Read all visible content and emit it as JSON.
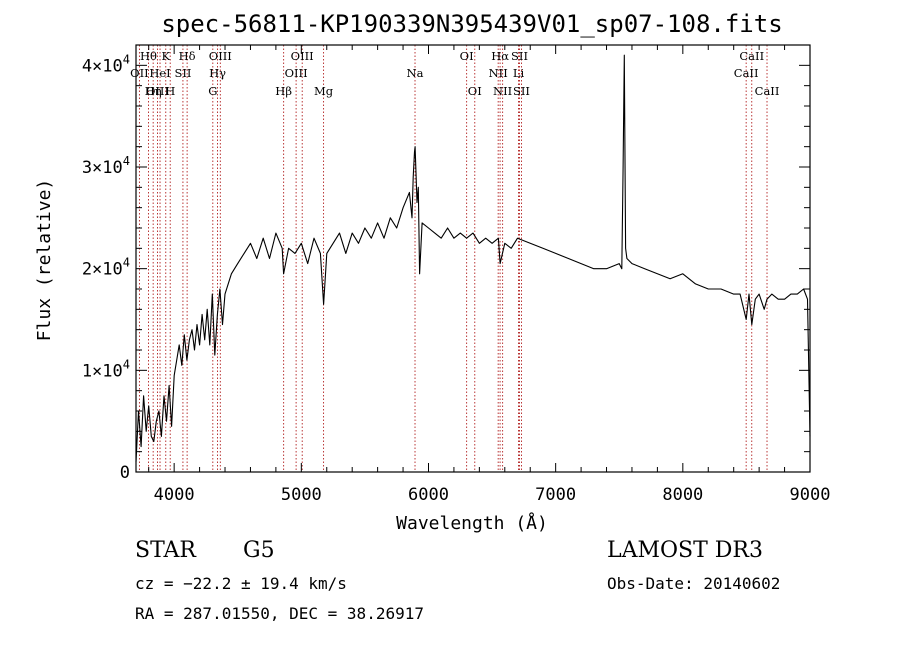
{
  "chart_data": {
    "type": "line",
    "title": "spec-56811-KP190339N395439V01_sp07-108.fits",
    "xlabel": "Wavelength (Å)",
    "ylabel": "Flux (relative)",
    "xlim": [
      3700,
      9000
    ],
    "ylim": [
      0,
      42000
    ],
    "x_ticks": [
      4000,
      5000,
      6000,
      7000,
      8000,
      9000
    ],
    "x_tick_labels": [
      "4000",
      "5000",
      "6000",
      "7000",
      "8000",
      "9000"
    ],
    "y_ticks": [
      0,
      10000,
      20000,
      30000,
      40000
    ],
    "y_tick_labels": [
      {
        "mant": "0",
        "exp": ""
      },
      {
        "mant": "1×10",
        "exp": "4"
      },
      {
        "mant": "2×10",
        "exp": "4"
      },
      {
        "mant": "3×10",
        "exp": "4"
      },
      {
        "mant": "4×10",
        "exp": "4"
      }
    ],
    "series": [
      {
        "name": "flux",
        "x": [
          3700,
          3720,
          3740,
          3760,
          3780,
          3800,
          3820,
          3840,
          3860,
          3880,
          3900,
          3920,
          3940,
          3960,
          3980,
          4000,
          4020,
          4040,
          4060,
          4080,
          4100,
          4120,
          4140,
          4160,
          4180,
          4200,
          4220,
          4240,
          4260,
          4280,
          4300,
          4320,
          4340,
          4360,
          4380,
          4400,
          4450,
          4500,
          4550,
          4600,
          4650,
          4700,
          4750,
          4800,
          4850,
          4861,
          4900,
          4950,
          5000,
          5050,
          5100,
          5150,
          5175,
          5200,
          5250,
          5300,
          5350,
          5400,
          5450,
          5500,
          5550,
          5600,
          5650,
          5700,
          5750,
          5800,
          5850,
          5870,
          5880,
          5890,
          5895,
          5900,
          5910,
          5920,
          5930,
          5950,
          6000,
          6050,
          6100,
          6150,
          6200,
          6250,
          6300,
          6350,
          6400,
          6450,
          6500,
          6550,
          6563,
          6600,
          6650,
          6700,
          6800,
          6900,
          7000,
          7100,
          7200,
          7300,
          7400,
          7500,
          7520,
          7530,
          7540,
          7550,
          7560,
          7600,
          7700,
          7800,
          7900,
          8000,
          8100,
          8200,
          8300,
          8400,
          8450,
          8498,
          8520,
          8542,
          8570,
          8600,
          8640,
          8662,
          8700,
          8750,
          8800,
          8850,
          8900,
          8950,
          8980,
          9000
        ],
        "y": [
          1000,
          6000,
          2500,
          7500,
          4000,
          6500,
          3500,
          3000,
          5000,
          6000,
          3500,
          7500,
          5000,
          8500,
          4500,
          9500,
          11000,
          12500,
          10500,
          13500,
          11000,
          13000,
          14000,
          12000,
          14500,
          12500,
          15500,
          13000,
          16000,
          12500,
          17500,
          11500,
          15500,
          18000,
          14500,
          17500,
          19500,
          20500,
          21500,
          22500,
          21000,
          23000,
          21000,
          23500,
          22000,
          19500,
          22000,
          21500,
          22500,
          20500,
          23000,
          21500,
          16500,
          21500,
          22500,
          23500,
          21500,
          23500,
          22500,
          24000,
          23000,
          24500,
          23000,
          25000,
          24000,
          26000,
          27500,
          25000,
          29000,
          31500,
          32000,
          30000,
          26500,
          28000,
          19500,
          24500,
          24000,
          23500,
          23000,
          24000,
          23000,
          23500,
          23000,
          23500,
          22500,
          23000,
          22500,
          23000,
          20500,
          22500,
          22000,
          23000,
          22500,
          22000,
          21500,
          21000,
          20500,
          20000,
          20000,
          20500,
          20000,
          30000,
          41000,
          22000,
          21000,
          20500,
          20000,
          19500,
          19000,
          19500,
          18500,
          18000,
          18000,
          17500,
          17500,
          15000,
          17500,
          14500,
          17000,
          17500,
          16000,
          17000,
          17500,
          17000,
          17000,
          17500,
          17500,
          18000,
          17000,
          3500
        ]
      }
    ],
    "spectral_lines": [
      {
        "name": "OII",
        "wave": 3727,
        "row": 1
      },
      {
        "name": "Hθ",
        "wave": 3798,
        "row": 0
      },
      {
        "name": "Hη",
        "wave": 3835,
        "row": 2
      },
      {
        "name": "OIII",
        "wave": 3869,
        "row": 2
      },
      {
        "name": "HeI",
        "wave": 3889,
        "row": 1
      },
      {
        "name": "K",
        "wave": 3934,
        "row": 0
      },
      {
        "name": "H",
        "wave": 3969,
        "row": 2
      },
      {
        "name": "SII",
        "wave": 4069,
        "row": 1
      },
      {
        "name": "Hδ",
        "wave": 4102,
        "row": 0
      },
      {
        "name": "G",
        "wave": 4304,
        "row": 2
      },
      {
        "name": "Hγ",
        "wave": 4341,
        "row": 1
      },
      {
        "name": "OIII",
        "wave": 4363,
        "row": 0
      },
      {
        "name": "Hβ",
        "wave": 4861,
        "row": 2
      },
      {
        "name": "OIII",
        "wave": 4959,
        "row": 1
      },
      {
        "name": "OIII",
        "wave": 5007,
        "row": 0
      },
      {
        "name": "Mg",
        "wave": 5175,
        "row": 2
      },
      {
        "name": "Na",
        "wave": 5894,
        "row": 1
      },
      {
        "name": "OI",
        "wave": 6300,
        "row": 0
      },
      {
        "name": "OI",
        "wave": 6364,
        "row": 2
      },
      {
        "name": "NII",
        "wave": 6548,
        "row": 1
      },
      {
        "name": "Hα",
        "wave": 6563,
        "row": 0
      },
      {
        "name": "NII",
        "wave": 6583,
        "row": 2
      },
      {
        "name": "Li",
        "wave": 6708,
        "row": 1
      },
      {
        "name": "SII",
        "wave": 6716,
        "row": 0
      },
      {
        "name": "SII",
        "wave": 6731,
        "row": 2
      },
      {
        "name": "CaII",
        "wave": 8498,
        "row": 1
      },
      {
        "name": "CaII",
        "wave": 8542,
        "row": 0
      },
      {
        "name": "CaII",
        "wave": 8662,
        "row": 2
      }
    ],
    "colors": {
      "spectrum": "#000000",
      "line_marker": "#b22222",
      "axes": "#000000"
    }
  },
  "info": {
    "obj_type": "STAR",
    "subclass": "G5",
    "survey": "LAMOST DR3",
    "cz": "cz = −22.2 ± 19.4 km/s",
    "obs_date": "Obs-Date: 20140602",
    "radec": "RA = 287.01550, DEC =  38.26917"
  }
}
